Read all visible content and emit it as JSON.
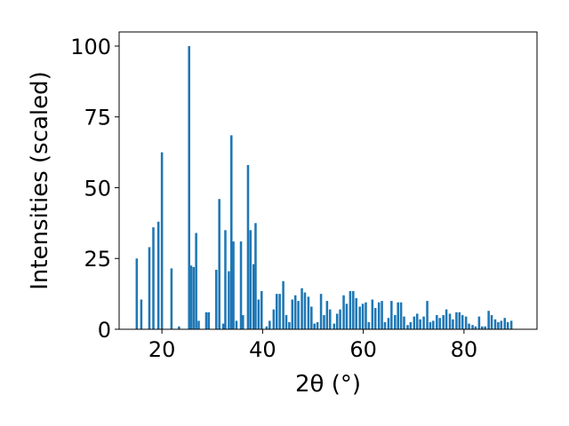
{
  "chart_data": {
    "type": "bar",
    "xlabel": "2θ (°)",
    "ylabel": "Intensities (scaled)",
    "xlim": [
      11.5,
      94.5
    ],
    "ylim": [
      0,
      105
    ],
    "grid": false,
    "bar_color": "#1f77b4",
    "x_ticks": [
      20,
      40,
      60,
      80
    ],
    "y_ticks": [
      0,
      25,
      50,
      75,
      100
    ],
    "bar_width": 0.45,
    "x": [
      15.0,
      15.9,
      17.5,
      18.3,
      19.3,
      20.0,
      21.9,
      23.4,
      25.4,
      25.8,
      26.3,
      26.8,
      27.3,
      28.8,
      29.3,
      30.8,
      31.4,
      32.2,
      32.6,
      33.3,
      33.8,
      34.2,
      34.8,
      35.7,
      36.1,
      37.1,
      37.6,
      38.2,
      38.6,
      39.2,
      39.8,
      40.8,
      41.4,
      42.2,
      42.8,
      43.4,
      44.1,
      44.7,
      45.3,
      45.9,
      46.5,
      47.1,
      47.8,
      48.4,
      49.1,
      49.7,
      50.3,
      50.9,
      51.6,
      52.2,
      52.8,
      53.4,
      54.2,
      54.8,
      55.4,
      56.1,
      56.7,
      57.4,
      58.0,
      58.6,
      59.3,
      59.9,
      60.5,
      61.1,
      61.8,
      62.4,
      63.1,
      63.7,
      64.3,
      65.0,
      65.6,
      66.3,
      66.9,
      67.5,
      68.1,
      68.8,
      69.4,
      70.1,
      70.7,
      71.3,
      72.0,
      72.7,
      73.3,
      73.9,
      74.6,
      75.2,
      75.9,
      76.5,
      77.2,
      77.8,
      78.5,
      79.1,
      79.7,
      80.4,
      81.0,
      81.7,
      82.3,
      83.0,
      83.6,
      84.2,
      84.9,
      85.5,
      86.2,
      86.8,
      87.4,
      88.1,
      88.7,
      89.4
    ],
    "values": [
      25,
      10.5,
      29,
      36,
      38,
      62.5,
      21.5,
      1,
      100,
      22.5,
      22,
      34,
      3,
      6,
      6,
      21,
      46,
      2,
      35,
      20.5,
      68.5,
      31,
      3,
      31,
      5,
      58,
      35,
      23,
      37.5,
      10.5,
      13.5,
      1,
      3,
      7,
      12.5,
      12.5,
      17,
      5,
      2.5,
      10.5,
      12,
      10,
      14.5,
      13,
      11.5,
      8,
      2,
      2.5,
      12.5,
      5,
      10,
      7,
      2,
      5.5,
      7,
      12,
      9,
      13.5,
      13.5,
      11,
      8,
      9,
      9.5,
      2.5,
      10.5,
      7.5,
      9.5,
      10,
      2.5,
      4,
      10,
      5,
      9.5,
      9.5,
      4.5,
      1.5,
      2.5,
      4.5,
      5.5,
      3.5,
      4.5,
      10,
      2.5,
      3,
      5,
      4,
      5,
      7,
      5.5,
      3.5,
      6,
      6,
      5,
      4.5,
      2,
      1.5,
      1,
      4.5,
      1,
      1,
      6.5,
      5,
      3.5,
      2.5,
      3,
      4,
      2.5,
      3
    ]
  }
}
